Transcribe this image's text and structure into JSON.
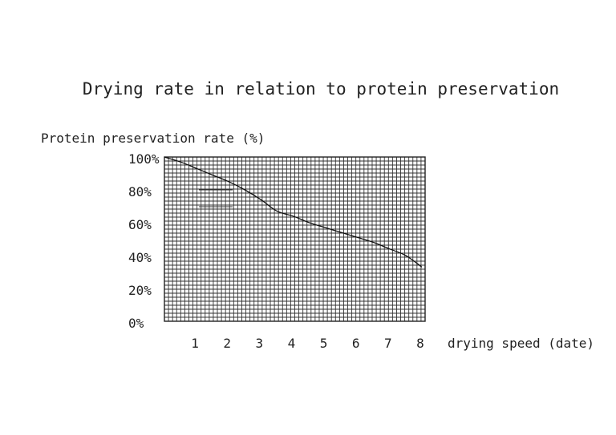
{
  "chart_data": {
    "type": "line",
    "title": "Drying rate in relation to protein preservation",
    "ylabel": "Protein preservation rate (%)",
    "xlabel": "drying speed (date)",
    "x_ticks": [
      "1",
      "2",
      "3",
      "4",
      "5",
      "6",
      "7",
      "8"
    ],
    "y_ticks": [
      "0%",
      "20%",
      "40%",
      "60%",
      "80%",
      "100%"
    ],
    "ylim": [
      0,
      100
    ],
    "grid": true,
    "series": [
      {
        "x": [
          0,
          0.5,
          1,
          1.5,
          2,
          2.5,
          3,
          3.5,
          4,
          4.5,
          5,
          5.5,
          6,
          6.5,
          7,
          7.5,
          8
        ],
        "y": [
          100,
          97,
          93,
          89,
          85,
          80,
          74,
          67,
          64,
          60,
          57,
          54,
          51,
          48,
          44,
          40,
          33
        ]
      }
    ],
    "colors": {
      "line": "#111111",
      "grid": "#333333"
    }
  }
}
